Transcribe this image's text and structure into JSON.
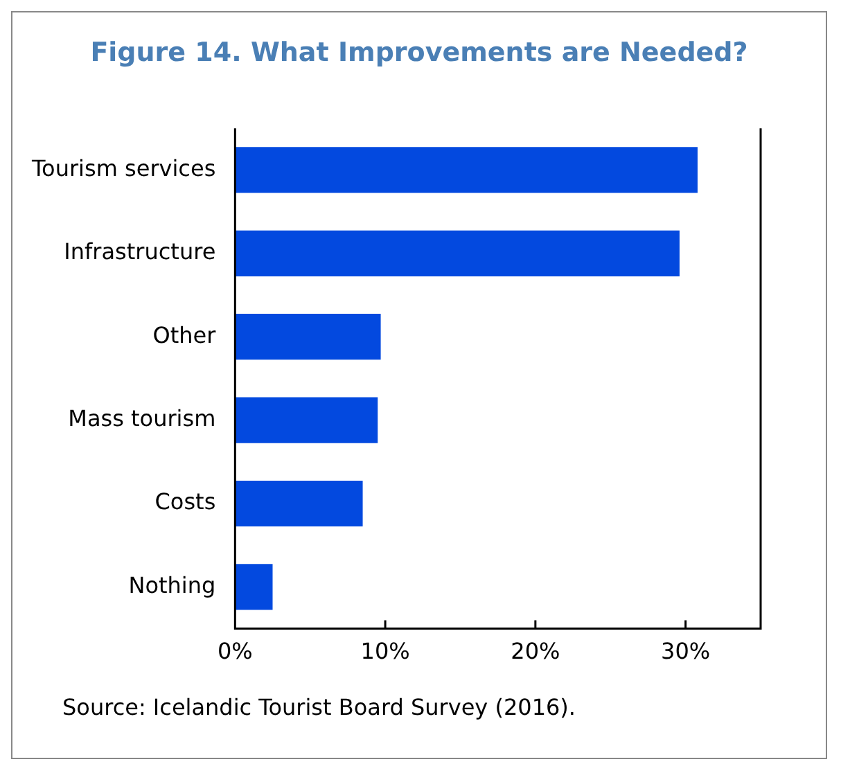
{
  "chart_data": {
    "type": "bar",
    "orientation": "horizontal",
    "title": "Figure 14. What Improvements are Needed?",
    "categories": [
      "Tourism services",
      "Infrastructure",
      "Other",
      "Mass tourism",
      "Costs",
      "Nothing"
    ],
    "values": [
      30.8,
      29.6,
      9.7,
      9.5,
      8.5,
      2.5
    ],
    "color": "#0349df",
    "xlim": [
      0,
      35
    ],
    "xticks": [
      {
        "value": 0,
        "label": "0%"
      },
      {
        "value": 10,
        "label": "10%"
      },
      {
        "value": 20,
        "label": "20%"
      },
      {
        "value": 30,
        "label": "30%"
      }
    ],
    "grid": false,
    "legend": false,
    "annotations": [
      "Source: Icelandic Tourist Board Survey (2016)."
    ]
  }
}
